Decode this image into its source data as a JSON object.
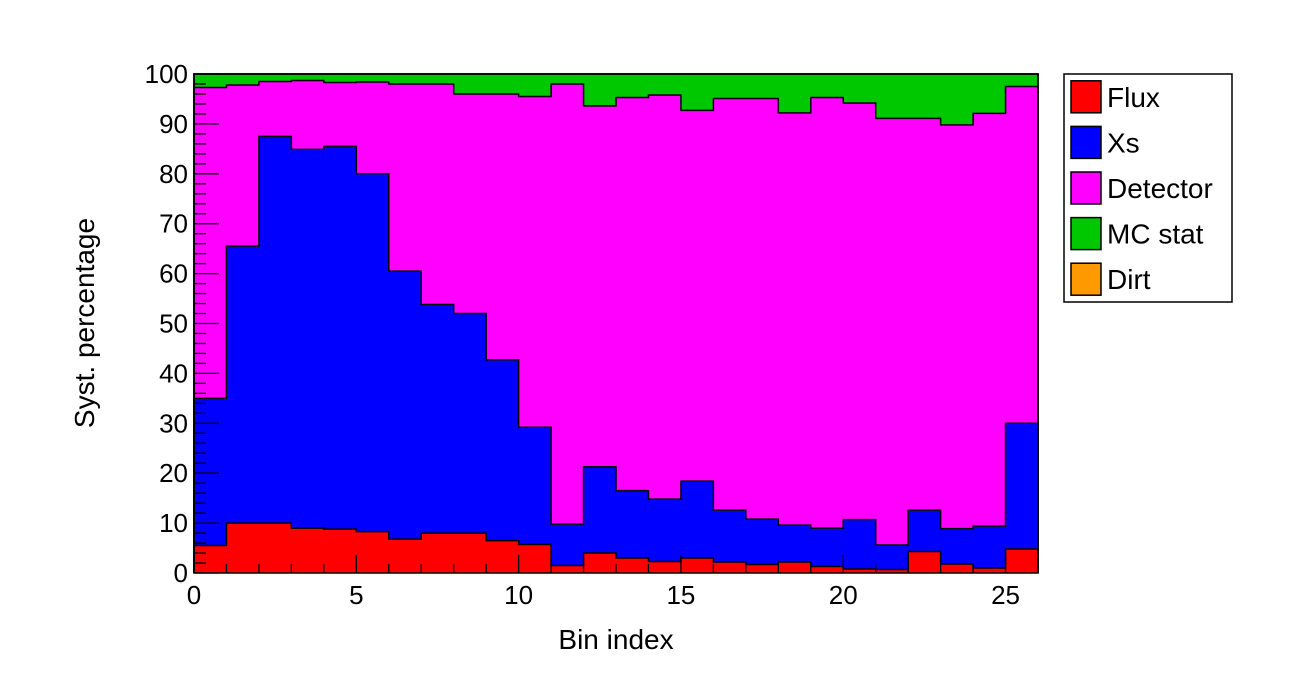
{
  "chart_data": {
    "type": "bar",
    "stacked": true,
    "stacking": "cumulative step histogram",
    "title": "",
    "xlabel": "Bin index",
    "ylabel": "Syst. percentage",
    "xlim": [
      0,
      26
    ],
    "ylim": [
      0,
      100
    ],
    "xticks": [
      0,
      5,
      10,
      15,
      20,
      25
    ],
    "yticks": [
      0,
      10,
      20,
      30,
      40,
      50,
      60,
      70,
      80,
      90,
      100
    ],
    "grid": false,
    "legend_position": "top-right, outside plot",
    "bin_edges": [
      0,
      1,
      2,
      3,
      4,
      5,
      6,
      7,
      8,
      9,
      10,
      11,
      12,
      13,
      14,
      15,
      16,
      17,
      18,
      19,
      20,
      21,
      22,
      23,
      24,
      25,
      26
    ],
    "series": [
      {
        "name": "Flux",
        "color": "#ff0000",
        "values": [
          5.5,
          10.0,
          10.0,
          9.0,
          8.8,
          8.3,
          6.8,
          8.0,
          8.0,
          6.5,
          5.7,
          1.5,
          4.0,
          3.0,
          2.3,
          3.0,
          2.2,
          1.7,
          2.2,
          1.3,
          0.8,
          0.7,
          4.3,
          1.8,
          1.0,
          4.8
        ]
      },
      {
        "name": "Xs",
        "color": "#0000ff",
        "values": [
          29.5,
          55.5,
          77.5,
          75.9,
          76.7,
          71.7,
          53.7,
          45.8,
          44.0,
          36.2,
          23.5,
          8.3,
          17.3,
          13.5,
          12.5,
          15.4,
          10.4,
          9.1,
          7.4,
          7.7,
          9.9,
          4.9,
          8.3,
          7.1,
          8.4,
          25.2
        ]
      },
      {
        "name": "Detector",
        "color": "#ff00ff",
        "values": [
          62.3,
          32.3,
          11.0,
          13.8,
          12.8,
          18.4,
          37.5,
          44.2,
          44.0,
          53.3,
          66.3,
          88.2,
          72.3,
          78.8,
          81.0,
          74.3,
          82.5,
          84.3,
          82.6,
          86.3,
          83.5,
          85.5,
          78.5,
          80.9,
          82.7,
          67.5
        ]
      },
      {
        "name": "MC stat",
        "color": "#00c800",
        "values": [
          2.7,
          2.2,
          1.5,
          1.3,
          1.7,
          1.6,
          2.0,
          2.0,
          4.0,
          4.0,
          4.5,
          2.0,
          6.4,
          4.7,
          4.2,
          7.3,
          4.9,
          4.9,
          7.8,
          4.7,
          5.8,
          8.9,
          8.9,
          10.2,
          7.9,
          2.5
        ]
      },
      {
        "name": "Dirt",
        "color": "#ff9900",
        "values": [
          0,
          0,
          0,
          0,
          0,
          0,
          0,
          0,
          0,
          0,
          0,
          0,
          0,
          0,
          0,
          0,
          0,
          0,
          0,
          0,
          0,
          0,
          0,
          0,
          0,
          0
        ]
      }
    ]
  }
}
